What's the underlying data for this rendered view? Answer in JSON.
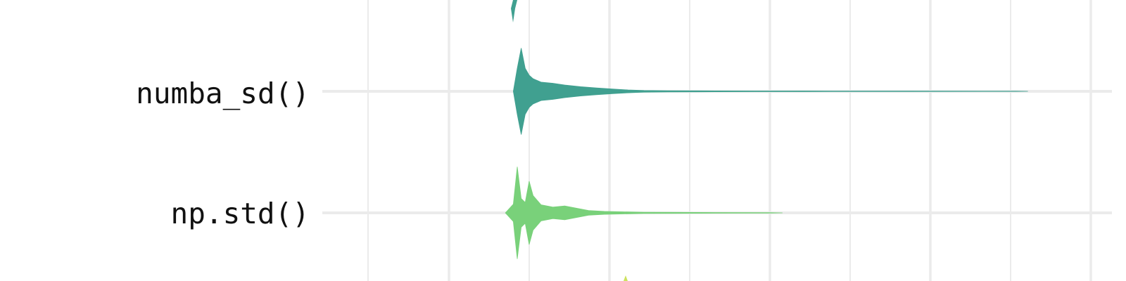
{
  "chart_data": {
    "type": "violin",
    "orientation": "horizontal",
    "background": "#ffffff",
    "grid": true,
    "gridline_color": "#ebebeb",
    "x_axis_labels_visible": false,
    "partially_visible_rows": [
      "above (teal, clipped)",
      "below (yellow, clipped)"
    ],
    "series": [
      {
        "label": "numba_sd()",
        "color": "#40a090",
        "profile": [
          [
            -0.05,
            0.0
          ],
          [
            0.0,
            0.4
          ],
          [
            0.05,
            0.75
          ],
          [
            0.1,
            0.4
          ],
          [
            0.15,
            0.28
          ],
          [
            0.2,
            0.22
          ],
          [
            0.3,
            0.16
          ],
          [
            0.45,
            0.14
          ],
          [
            0.6,
            0.11
          ],
          [
            0.8,
            0.08
          ],
          [
            1.0,
            0.06
          ],
          [
            1.2,
            0.04
          ],
          [
            1.4,
            0.025
          ],
          [
            1.6,
            0.015
          ],
          [
            1.9,
            0.01
          ],
          [
            2.3,
            0.008
          ],
          [
            3.0,
            0.006
          ],
          [
            4.0,
            0.005
          ],
          [
            5.0,
            0.004
          ],
          [
            6.3,
            0.003
          ],
          [
            6.45,
            0.0
          ]
        ]
      },
      {
        "label": "np.std()",
        "color": "#79d17a",
        "profile": [
          [
            -0.15,
            0.0
          ],
          [
            -0.05,
            0.15
          ],
          [
            0.0,
            0.8
          ],
          [
            0.05,
            0.25
          ],
          [
            0.1,
            0.18
          ],
          [
            0.15,
            0.55
          ],
          [
            0.2,
            0.3
          ],
          [
            0.3,
            0.14
          ],
          [
            0.45,
            0.1
          ],
          [
            0.6,
            0.12
          ],
          [
            0.75,
            0.08
          ],
          [
            0.9,
            0.04
          ],
          [
            1.1,
            0.025
          ],
          [
            1.3,
            0.02
          ],
          [
            1.6,
            0.01
          ],
          [
            2.0,
            0.008
          ],
          [
            2.5,
            0.006
          ],
          [
            3.2,
            0.004
          ],
          [
            3.35,
            0.0
          ]
        ]
      }
    ]
  }
}
